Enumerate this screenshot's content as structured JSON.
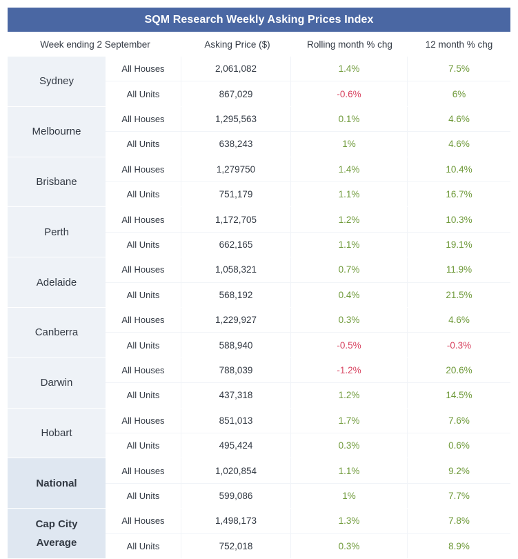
{
  "title": "SQM Research Weekly Asking Prices Index",
  "headers": {
    "week": "Week ending 2 September",
    "price": "Asking Price ($)",
    "month": "Rolling month % chg",
    "year": "12 month % chg"
  },
  "colors": {
    "header_bg": "#4a67a3",
    "positive": "#6f9a3a",
    "negative": "#d8425f"
  },
  "cities": [
    {
      "name": "Sydney",
      "rows": [
        {
          "type": "All Houses",
          "price": "2,061,082",
          "month": "1.4%",
          "year": "7.5%"
        },
        {
          "type": "All Units",
          "price": "867,029",
          "month": "-0.6%",
          "year": "6%"
        }
      ]
    },
    {
      "name": "Melbourne",
      "rows": [
        {
          "type": "All Houses",
          "price": "1,295,563",
          "month": "0.1%",
          "year": "4.6%"
        },
        {
          "type": "All Units",
          "price": "638,243",
          "month": "1%",
          "year": "4.6%"
        }
      ]
    },
    {
      "name": "Brisbane",
      "rows": [
        {
          "type": "All Houses",
          "price": "1,279750",
          "month": "1.4%",
          "year": "10.4%"
        },
        {
          "type": "All Units",
          "price": "751,179",
          "month": "1.1%",
          "year": "16.7%"
        }
      ]
    },
    {
      "name": "Perth",
      "rows": [
        {
          "type": "All Houses",
          "price": "1,172,705",
          "month": "1.2%",
          "year": "10.3%"
        },
        {
          "type": "All Units",
          "price": "662,165",
          "month": "1.1%",
          "year": "19.1%"
        }
      ]
    },
    {
      "name": "Adelaide",
      "rows": [
        {
          "type": "All Houses",
          "price": "1,058,321",
          "month": "0.7%",
          "year": "11.9%"
        },
        {
          "type": "All Units",
          "price": "568,192",
          "month": "0.4%",
          "year": "21.5%"
        }
      ]
    },
    {
      "name": "Canberra",
      "rows": [
        {
          "type": "All Houses",
          "price": "1,229,927",
          "month": "0.3%",
          "year": "4.6%"
        },
        {
          "type": "All Units",
          "price": "588,940",
          "month": "-0.5%",
          "year": "-0.3%"
        }
      ]
    },
    {
      "name": "Darwin",
      "rows": [
        {
          "type": "All Houses",
          "price": "788,039",
          "month": "-1.2%",
          "year": "20.6%"
        },
        {
          "type": "All Units",
          "price": "437,318",
          "month": "1.2%",
          "year": "14.5%"
        }
      ]
    },
    {
      "name": "Hobart",
      "rows": [
        {
          "type": "All Houses",
          "price": "851,013",
          "month": "1.7%",
          "year": "7.6%"
        },
        {
          "type": "All Units",
          "price": "495,424",
          "month": "0.3%",
          "year": "0.6%"
        }
      ]
    },
    {
      "name": "National",
      "rows": [
        {
          "type": "All Houses",
          "price": "1,020,854",
          "month": "1.1%",
          "year": "9.2%"
        },
        {
          "type": "All Units",
          "price": "599,086",
          "month": "1%",
          "year": "7.7%"
        }
      ]
    },
    {
      "name": "Cap City\nAverage",
      "rows": [
        {
          "type": "All Houses",
          "price": "1,498,173",
          "month": "1.3%",
          "year": "7.8%"
        },
        {
          "type": "All Units",
          "price": "752,018",
          "month": "0.3%",
          "year": "8.9%"
        }
      ]
    }
  ]
}
